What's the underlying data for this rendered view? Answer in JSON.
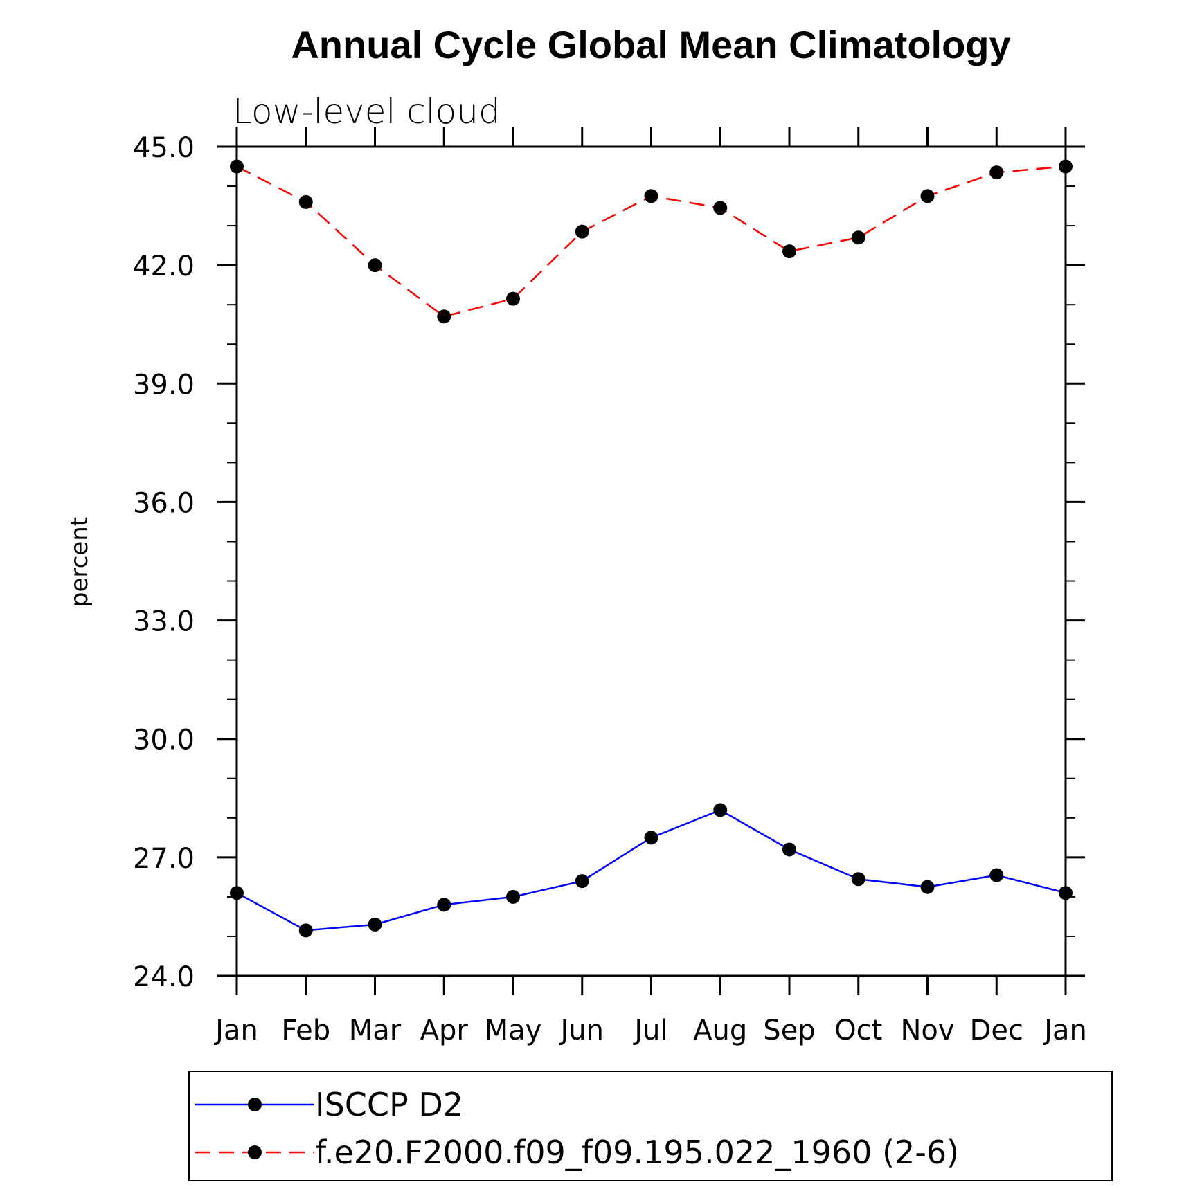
{
  "chart_data": {
    "type": "line",
    "title": "Annual Cycle Global Mean Climatology",
    "subtitle": "Low-level cloud",
    "xlabel": "",
    "ylabel": "percent",
    "categories": [
      "Jan",
      "Feb",
      "Mar",
      "Apr",
      "May",
      "Jun",
      "Jul",
      "Aug",
      "Sep",
      "Oct",
      "Nov",
      "Dec",
      "Jan"
    ],
    "ylim": [
      24.0,
      45.0
    ],
    "yticks": [
      "24.0",
      "27.0",
      "30.0",
      "33.0",
      "36.0",
      "39.0",
      "42.0",
      "45.0"
    ],
    "grid": false,
    "legend_position": "bottom",
    "series": [
      {
        "name": "ISCCP D2",
        "color": "#0000ff",
        "line_style": "solid",
        "marker": "filled-circle",
        "values": [
          26.1,
          25.15,
          25.3,
          25.8,
          26.0,
          26.4,
          27.5,
          28.2,
          27.2,
          26.45,
          26.25,
          26.55,
          26.1
        ]
      },
      {
        "name": "f.e20.F2000.f09_f09.195.022_1960 (2-6)",
        "color": "#ff0000",
        "line_style": "dashed",
        "marker": "filled-circle",
        "values": [
          44.5,
          43.6,
          42.0,
          40.7,
          41.15,
          42.85,
          43.75,
          43.45,
          42.35,
          42.7,
          43.75,
          44.35,
          44.5
        ]
      }
    ]
  }
}
